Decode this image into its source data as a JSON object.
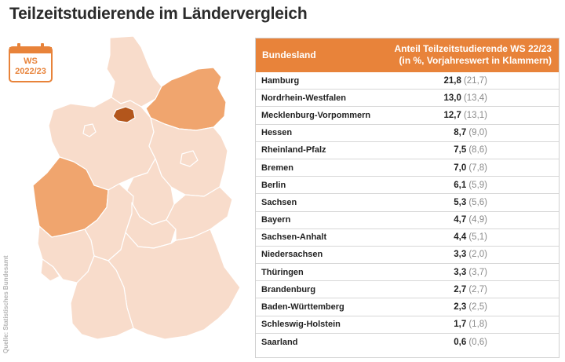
{
  "title": "Teilzeitstudierende im Ländervergleich",
  "badge": {
    "line1": "WS",
    "line2": "2022/23",
    "icon": "calendar-icon"
  },
  "source": "Quelle: Statistisches Bundesamt",
  "colors": {
    "accent": "#e8833a",
    "map_base": "#f8dccb",
    "map_mid": "#f0a56e",
    "map_top": "#b3561c"
  },
  "table": {
    "header_state": "Bundesland",
    "header_value_line1": "Anteil Teilzeitstudierende WS 22/23",
    "header_value_line2": "(in %, Vorjahreswert in Klammern)",
    "rows": [
      {
        "state": "Hamburg",
        "value": "21,8",
        "previous": "(21,7)"
      },
      {
        "state": "Nordrhein-Westfalen",
        "value": "13,0",
        "previous": "(13,4)"
      },
      {
        "state": "Mecklenburg-Vorpommern",
        "value": "12,7",
        "previous": "(13,1)"
      },
      {
        "state": "Hessen",
        "value": "8,7",
        "previous": "(9,0)"
      },
      {
        "state": "Rheinland-Pfalz",
        "value": "7,5",
        "previous": "(8,6)"
      },
      {
        "state": "Bremen",
        "value": "7,0",
        "previous": "(7,8)"
      },
      {
        "state": "Berlin",
        "value": "6,1",
        "previous": "(5,9)"
      },
      {
        "state": "Sachsen",
        "value": "5,3",
        "previous": "(5,6)"
      },
      {
        "state": "Bayern",
        "value": "4,7",
        "previous": "(4,9)"
      },
      {
        "state": "Sachsen-Anhalt",
        "value": "4,4",
        "previous": "(5,1)"
      },
      {
        "state": "Niedersachsen",
        "value": "3,3",
        "previous": "(2,0)"
      },
      {
        "state": "Thüringen",
        "value": "3,3",
        "previous": "(3,7)"
      },
      {
        "state": "Brandenburg",
        "value": "2,7",
        "previous": "(2,7)"
      },
      {
        "state": "Baden-Württemberg",
        "value": "2,3",
        "previous": "(2,5)"
      },
      {
        "state": "Schleswig-Holstein",
        "value": "1,7",
        "previous": "(1,8)"
      },
      {
        "state": "Saarland",
        "value": "0,6",
        "previous": "(0,6)"
      }
    ]
  },
  "chart_data": {
    "type": "table",
    "title": "Teilzeitstudierende im Ländervergleich",
    "columns": [
      "Bundesland",
      "Anteil Teilzeitstudierende WS 22/23 (in %, Vorjahreswert in Klammern)"
    ],
    "categories": [
      "Hamburg",
      "Nordrhein-Westfalen",
      "Mecklenburg-Vorpommern",
      "Hessen",
      "Rheinland-Pfalz",
      "Bremen",
      "Berlin",
      "Sachsen",
      "Bayern",
      "Sachsen-Anhalt",
      "Niedersachsen",
      "Thüringen",
      "Brandenburg",
      "Baden-Württemberg",
      "Schleswig-Holstein",
      "Saarland"
    ],
    "series": [
      {
        "name": "WS 22/23",
        "values": [
          21.8,
          13.0,
          12.7,
          8.7,
          7.5,
          7.0,
          6.1,
          5.3,
          4.7,
          4.4,
          3.3,
          3.3,
          2.7,
          2.3,
          1.7,
          0.6
        ]
      },
      {
        "name": "Vorjahreswert",
        "values": [
          21.7,
          13.4,
          13.1,
          9.0,
          8.6,
          7.8,
          5.9,
          5.6,
          4.9,
          5.1,
          2.0,
          3.7,
          2.7,
          2.5,
          1.8,
          0.6
        ]
      }
    ]
  }
}
